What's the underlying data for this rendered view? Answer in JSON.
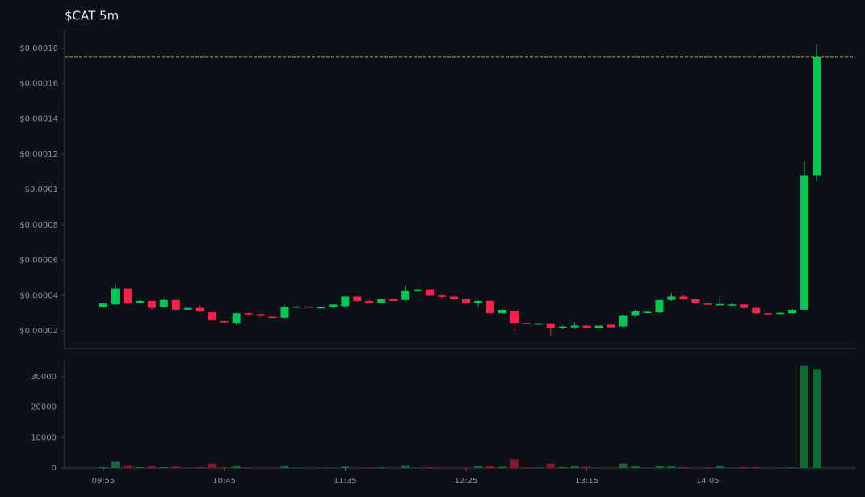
{
  "chart_data": {
    "type": "candlestick",
    "title": "$CAT 5m",
    "categories": [
      "09:55",
      null,
      null,
      null,
      null,
      null,
      null,
      null,
      null,
      null,
      "10:45",
      null,
      null,
      null,
      null,
      null,
      null,
      null,
      null,
      null,
      "11:35",
      null,
      null,
      null,
      null,
      null,
      null,
      null,
      null,
      null,
      "12:25",
      null,
      null,
      null,
      null,
      null,
      null,
      null,
      null,
      null,
      "13:15",
      null,
      null,
      null,
      null,
      null,
      null,
      null,
      null,
      null,
      "14:05",
      null,
      null,
      null,
      null,
      null,
      null,
      null,
      null,
      null
    ],
    "up_color": "#00c853",
    "down_color": "#ff1f4b",
    "volume_up_color": "#0e6b33",
    "volume_down_color": "#8a1430",
    "price_line_color": "#c9a227",
    "open": [
      3.35e-05,
      3.5e-05,
      4.4e-05,
      3.6e-05,
      3.7e-05,
      3.35e-05,
      3.75e-05,
      3.2e-05,
      3.3e-05,
      3.05e-05,
      2.55e-05,
      2.45e-05,
      3e-05,
      2.95e-05,
      2.8e-05,
      2.75e-05,
      3.35e-05,
      3.38e-05,
      3.32e-05,
      3.35e-05,
      3.4e-05,
      3.95e-05,
      3.7e-05,
      3.6e-05,
      3.8e-05,
      3.75e-05,
      4.25e-05,
      4.35e-05,
      4e-05,
      3.95e-05,
      3.8e-05,
      3.6e-05,
      3.7e-05,
      3e-05,
      3.15e-05,
      2.45e-05,
      2.35e-05,
      2.43e-05,
      2.15e-05,
      2.2e-05,
      2.3e-05,
      2.15e-05,
      2.35e-05,
      2.25e-05,
      2.85e-05,
      3.05e-05,
      3.05e-05,
      3.75e-05,
      3.95e-05,
      3.8e-05,
      3.55e-05,
      3.5e-05,
      3.48e-05,
      3.5e-05,
      3.3e-05,
      3e-05,
      2.98e-05,
      3e-05,
      3.2e-05,
      0.000108
    ],
    "high": [
      3.6e-05,
      4.65e-05,
      4.4e-05,
      3.75e-05,
      3.7e-05,
      3.85e-05,
      3.75e-05,
      3.3e-05,
      3.45e-05,
      3.05e-05,
      2.6e-05,
      3.05e-05,
      3.05e-05,
      2.95e-05,
      2.8e-05,
      3.45e-05,
      3.4e-05,
      3.38e-05,
      3.35e-05,
      3.5e-05,
      3.95e-05,
      3.95e-05,
      3.75e-05,
      3.85e-05,
      3.8e-05,
      4.55e-05,
      4.4e-05,
      4.35e-05,
      4.05e-05,
      3.95e-05,
      3.8e-05,
      3.75e-05,
      3.75e-05,
      3.25e-05,
      3.15e-05,
      2.45e-05,
      2.45e-05,
      2.43e-05,
      2.3e-05,
      2.5e-05,
      2.3e-05,
      2.3e-05,
      2.35e-05,
      2.9e-05,
      3.2e-05,
      3.1e-05,
      3.75e-05,
      4.15e-05,
      4.05e-05,
      3.8e-05,
      3.65e-05,
      3.95e-05,
      3.55e-05,
      3.5e-05,
      3.3e-05,
      3e-05,
      3.05e-05,
      3.25e-05,
      0.000116,
      0.000182
    ],
    "low": [
      3.3e-05,
      3.5e-05,
      3.5e-05,
      3.55e-05,
      3.2e-05,
      3.3e-05,
      3.15e-05,
      3.2e-05,
      3.05e-05,
      2.55e-05,
      2.45e-05,
      2.35e-05,
      2.9e-05,
      2.8e-05,
      2.75e-05,
      2.7e-05,
      3.3e-05,
      3.3e-05,
      3.3e-05,
      3.3e-05,
      3.35e-05,
      3.65e-05,
      3.55e-05,
      3.55e-05,
      3.7e-05,
      3.7e-05,
      4.2e-05,
      3.95e-05,
      3.85e-05,
      3.75e-05,
      3.55e-05,
      3.35e-05,
      3e-05,
      2.95e-05,
      2e-05,
      2.4e-05,
      2.35e-05,
      1.75e-05,
      2.1e-05,
      2.1e-05,
      2.15e-05,
      2.15e-05,
      2.2e-05,
      2.2e-05,
      2.8e-05,
      3e-05,
      3e-05,
      3.7e-05,
      3.75e-05,
      3.55e-05,
      3.45e-05,
      3.48e-05,
      3.4e-05,
      3.25e-05,
      2.95e-05,
      2.95e-05,
      2.95e-05,
      2.98e-05,
      3.2e-05,
      0.000105
    ],
    "close": [
      3.55e-05,
      4.4e-05,
      3.55e-05,
      3.7e-05,
      3.3e-05,
      3.75e-05,
      3.2e-05,
      3.3e-05,
      3.1e-05,
      2.6e-05,
      2.5e-05,
      3e-05,
      2.95e-05,
      2.85e-05,
      2.75e-05,
      3.35e-05,
      3.38e-05,
      3.33e-05,
      3.34e-05,
      3.5e-05,
      3.95e-05,
      3.7e-05,
      3.6e-05,
      3.8e-05,
      3.7e-05,
      4.25e-05,
      4.35e-05,
      4e-05,
      3.95e-05,
      3.8e-05,
      3.6e-05,
      3.7e-05,
      3e-05,
      3.2e-05,
      2.45e-05,
      2.4e-05,
      2.43e-05,
      2.15e-05,
      2.25e-05,
      2.3e-05,
      2.15e-05,
      2.3e-05,
      2.2e-05,
      2.85e-05,
      3.1e-05,
      3.08e-05,
      3.75e-05,
      3.95e-05,
      3.8e-05,
      3.6e-05,
      3.5e-05,
      3.52e-05,
      3.5e-05,
      3.3e-05,
      3e-05,
      2.98e-05,
      3.02e-05,
      3.2e-05,
      0.000108,
      0.000175
    ],
    "volume": [
      300,
      2000,
      900,
      300,
      800,
      300,
      500,
      100,
      300,
      1400,
      200,
      800,
      200,
      100,
      100,
      800,
      100,
      100,
      100,
      100,
      500,
      100,
      200,
      200,
      100,
      900,
      100,
      300,
      100,
      100,
      100,
      700,
      800,
      400,
      2800,
      200,
      200,
      1400,
      300,
      800,
      400,
      100,
      100,
      1400,
      600,
      100,
      700,
      600,
      300,
      100,
      200,
      800,
      100,
      300,
      300,
      100,
      100,
      200,
      33500,
      32500
    ],
    "ylim": [
      1e-05,
      0.00019
    ],
    "yticks": [
      {
        "value": 2e-05,
        "label": "$0.00002"
      },
      {
        "value": 4e-05,
        "label": "$0.00004"
      },
      {
        "value": 6e-05,
        "label": "$0.00006"
      },
      {
        "value": 8e-05,
        "label": "$0.00008"
      },
      {
        "value": 0.0001,
        "label": "$0.0001"
      },
      {
        "value": 0.00012,
        "label": "$0.00012"
      },
      {
        "value": 0.00014,
        "label": "$0.00014"
      },
      {
        "value": 0.00016,
        "label": "$0.00016"
      },
      {
        "value": 0.00018,
        "label": "$0.00018"
      }
    ],
    "y2lim": [
      0,
      35000
    ],
    "y2ticks": [
      0,
      10000,
      20000,
      30000
    ]
  }
}
